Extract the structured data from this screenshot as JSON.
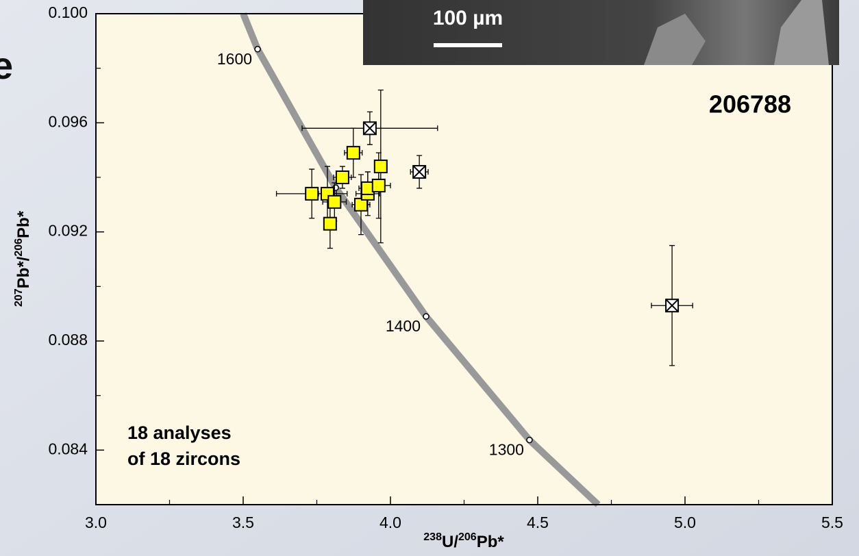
{
  "chart_data": {
    "type": "scatter",
    "background_text": "e",
    "inset_scale_bar": "100 µm",
    "annotations": [
      "206788",
      "18 analyses",
      "of 18 zircons"
    ],
    "xlabel_parts": [
      {
        "text": "238",
        "sup": true
      },
      {
        "text": "U/",
        "sup": false
      },
      {
        "text": "206",
        "sup": true
      },
      {
        "text": "Pb*",
        "sup": false
      }
    ],
    "ylabel_parts": [
      {
        "text": "207",
        "sup": true
      },
      {
        "text": "Pb*/",
        "sup": false
      },
      {
        "text": "206",
        "sup": true
      },
      {
        "text": "Pb*",
        "sup": false
      }
    ],
    "xlim": [
      3.0,
      5.5
    ],
    "ylim": [
      0.082,
      0.1
    ],
    "xticks": [
      {
        "value": 3.0,
        "label": "3.0"
      },
      3.5,
      {
        "value": 4.0,
        "label": "4.0"
      },
      4.5,
      {
        "value": 5.0,
        "label": "5.0"
      },
      5.5
    ],
    "yticks": [
      0.084,
      0.088,
      0.092,
      0.096,
      {
        "value": 0.1,
        "label": "0.100"
      }
    ],
    "xminor_ticks": [
      3.25,
      3.75,
      4.25,
      4.75,
      5.25
    ],
    "yminor_ticks": [
      0.086,
      0.09,
      0.094,
      0.098
    ],
    "concordia": {
      "color": "#999999",
      "x": [
        3.5,
        3.549,
        3.814,
        4.121,
        4.472,
        4.705
      ],
      "y": [
        0.1,
        0.0987,
        0.09362,
        0.0889,
        0.08437,
        0.082
      ]
    },
    "age_points": {
      "x": [
        3.549,
        3.814,
        4.121,
        4.472
      ],
      "y": [
        0.0987,
        0.09362,
        0.0889,
        0.08437
      ],
      "labels": [
        "1600",
        null,
        "1400",
        "1300"
      ]
    },
    "series": [
      {
        "marker": "square",
        "color": "#ffff00",
        "x": [
          3.733,
          3.786,
          3.795,
          3.81,
          3.837,
          3.874,
          3.9,
          3.923,
          3.923,
          3.96,
          3.967
        ],
        "y": [
          0.0934,
          0.0934,
          0.0923,
          0.0931,
          0.094,
          0.0949,
          0.093,
          0.0934,
          0.0936,
          0.0937,
          0.0944
        ],
        "xerr": [
          0.12,
          0.03,
          0.02,
          0.04,
          0.03,
          0.03,
          0.03,
          0.04,
          0.03,
          0.04,
          0.02
        ],
        "yerr": [
          0.0009,
          0.001,
          0.0009,
          0.0007,
          0.0004,
          0.0009,
          0.0011,
          0.0008,
          0.0006,
          0.0012,
          0.0028
        ]
      },
      {
        "marker": "crossed-square",
        "color": "#ffffff",
        "x": [
          3.93,
          4.098,
          4.956
        ],
        "y": [
          0.0958,
          0.0942,
          0.0893
        ],
        "xerr": [
          0.23,
          0.03,
          0.07
        ],
        "yerr": [
          0.0006,
          0.0006,
          0.0022
        ]
      }
    ]
  }
}
